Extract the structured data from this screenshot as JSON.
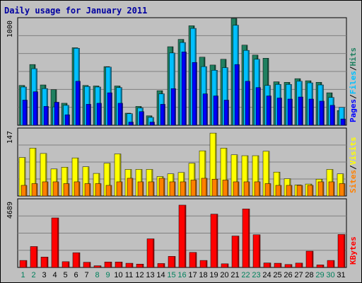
{
  "chart_data": {
    "type": "bar",
    "title": "Daily usage for January 2011",
    "categories": [
      "1",
      "2",
      "3",
      "4",
      "5",
      "6",
      "7",
      "8",
      "9",
      "10",
      "11",
      "12",
      "13",
      "14",
      "15",
      "16",
      "17",
      "18",
      "19",
      "20",
      "21",
      "22",
      "23",
      "24",
      "25",
      "26",
      "27",
      "28",
      "29",
      "30",
      "31"
    ],
    "weekend_days": [
      "1",
      "2",
      "8",
      "9",
      "15",
      "16",
      "22",
      "23",
      "29",
      "30"
    ],
    "panels": [
      {
        "id": "hits-files-pages",
        "ymax_label": "1000",
        "ymax": 1000,
        "legend": [
          "Pages",
          "Files",
          "Hits"
        ],
        "series": [
          {
            "name": "Hits",
            "color": "#208060",
            "values": [
              380,
              580,
              385,
              340,
              210,
              740,
              380,
              375,
              560,
              375,
              115,
              180,
              90,
              330,
              750,
              820,
              950,
              650,
              575,
              630,
              1020,
              765,
              670,
              640,
              415,
              410,
              445,
              425,
              410,
              310,
              140
            ]
          },
          {
            "name": "Files",
            "color": "#00c0ff",
            "values": [
              365,
              540,
              350,
              175,
              190,
              735,
              370,
              365,
              555,
              360,
              110,
              165,
              75,
              300,
              690,
              790,
              925,
              560,
              525,
              550,
              955,
              715,
              630,
              380,
              390,
              390,
              420,
              405,
              385,
              265,
              170
            ]
          },
          {
            "name": "Pages",
            "color": "#0000ff",
            "values": [
              240,
              320,
              180,
              220,
              100,
              420,
              200,
              210,
              310,
              210,
              30,
              130,
              30,
              200,
              350,
              700,
              600,
              300,
              280,
              240,
              580,
              420,
              360,
              280,
              260,
              250,
              270,
              250,
              230,
              190,
              60
            ]
          }
        ]
      },
      {
        "id": "visits-sites",
        "ymax_label": "147",
        "ymax": 147,
        "legend": [
          "Sites",
          "Visits"
        ],
        "series": [
          {
            "name": "Visits",
            "color": "#ffff00",
            "values": [
              87,
              108,
              96,
              61,
              65,
              86,
              66,
              51,
              74,
              95,
              60,
              60,
              60,
              44,
              50,
              53,
              74,
              102,
              142,
              108,
              93,
              91,
              91,
              101,
              54,
              39,
              25,
              27,
              38,
              60,
              50
            ]
          },
          {
            "name": "Sites",
            "color": "#ff8000",
            "values": [
              24,
              28,
              32,
              32,
              28,
              32,
              28,
              28,
              24,
              32,
              40,
              32,
              32,
              40,
              32,
              32,
              36,
              40,
              38,
              36,
              32,
              32,
              32,
              28,
              24,
              24,
              24,
              24,
              32,
              32,
              28
            ]
          }
        ]
      },
      {
        "id": "kbytes",
        "ymax_label": "4689",
        "ymax": 4689,
        "legend": [
          "KBytes"
        ],
        "series": [
          {
            "name": "KBytes",
            "color": "#ff0000",
            "values": [
              500,
              1490,
              740,
              3530,
              410,
              1050,
              370,
              120,
              390,
              390,
              300,
              240,
              2040,
              280,
              790,
              4440,
              1070,
              500,
              3800,
              260,
              2240,
              4170,
              2330,
              320,
              300,
              210,
              310,
              1160,
              180,
              500,
              2350
            ]
          }
        ]
      }
    ]
  }
}
